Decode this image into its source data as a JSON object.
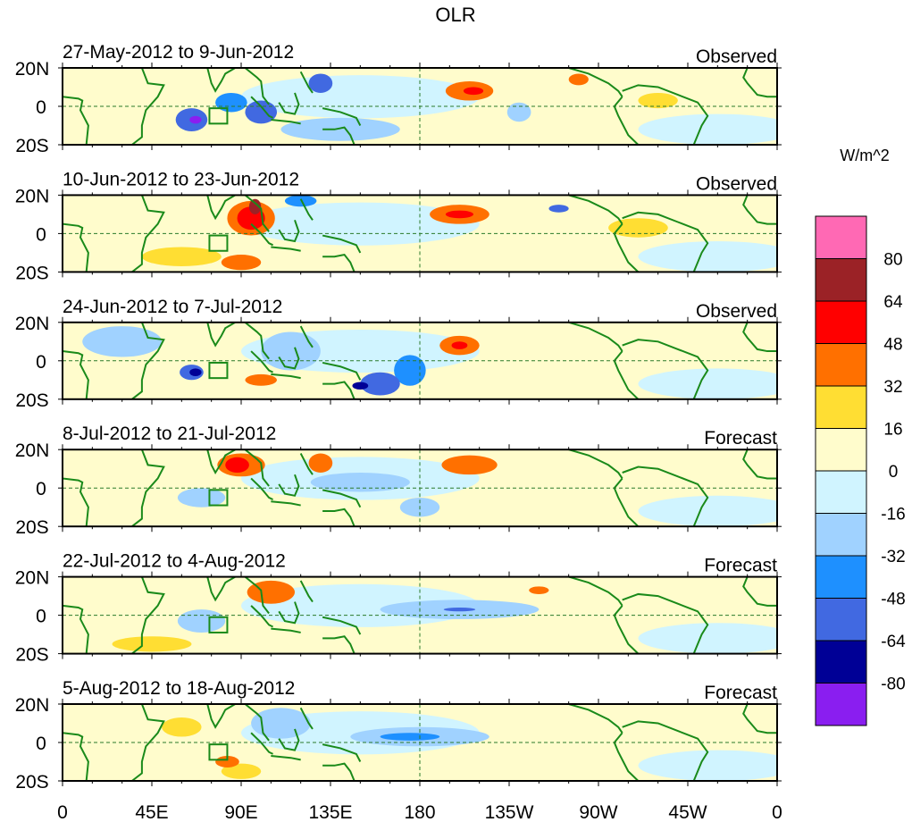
{
  "chart_data": {
    "type": "heatmap",
    "title": "OLR",
    "units_label": "W/m^2",
    "xlim": [
      0,
      360
    ],
    "ylim": [
      -20,
      20
    ],
    "x_ticks": [
      {
        "lon": 0,
        "label": "0"
      },
      {
        "lon": 45,
        "label": "45E"
      },
      {
        "lon": 90,
        "label": "90E"
      },
      {
        "lon": 135,
        "label": "135E"
      },
      {
        "lon": 180,
        "label": "180"
      },
      {
        "lon": 225,
        "label": "135W"
      },
      {
        "lon": 270,
        "label": "90W"
      },
      {
        "lon": 315,
        "label": "45W"
      },
      {
        "lon": 360,
        "label": "0"
      }
    ],
    "y_ticks": [
      {
        "lat": 20,
        "label": "20N"
      },
      {
        "lat": 0,
        "label": "0"
      },
      {
        "lat": -20,
        "label": "20S"
      }
    ],
    "colorbar": {
      "levels": [
        "80",
        "64",
        "48",
        "32",
        "16",
        "0",
        "-16",
        "-32",
        "-48",
        "-64",
        "-80"
      ],
      "colors": [
        "#ff69b4",
        "#9b2226",
        "#ff0000",
        "#ff7000",
        "#ffde33",
        "#fffccc",
        "#d0f4ff",
        "#a0d2ff",
        "#1e90ff",
        "#4169e1",
        "#000096",
        "#8a1ef0"
      ]
    },
    "panels": [
      {
        "period": "27-May-2012 to 9-Jun-2012",
        "kind": "Observed",
        "features": [
          [
            140,
            -12,
            30,
            6,
            -16
          ],
          [
            65,
            -7,
            8,
            6,
            -48
          ],
          [
            67,
            -7,
            3,
            2,
            -80
          ],
          [
            85,
            2,
            8,
            5,
            -32
          ],
          [
            100,
            -3,
            8,
            6,
            -48
          ],
          [
            130,
            12,
            6,
            5,
            -48
          ],
          [
            205,
            8,
            12,
            5,
            32
          ],
          [
            207,
            8,
            5,
            2,
            48
          ],
          [
            230,
            -3,
            6,
            5,
            -16
          ],
          [
            300,
            3,
            10,
            4,
            16
          ],
          [
            260,
            14,
            5,
            3,
            32
          ]
        ]
      },
      {
        "period": "10-Jun-2012 to 23-Jun-2012",
        "kind": "Observed",
        "features": [
          [
            60,
            -12,
            20,
            5,
            16
          ],
          [
            95,
            8,
            12,
            9,
            32
          ],
          [
            95,
            8,
            7,
            6,
            48
          ],
          [
            97,
            14,
            3,
            4,
            64
          ],
          [
            200,
            10,
            15,
            5,
            32
          ],
          [
            200,
            10,
            7,
            2,
            48
          ],
          [
            120,
            17,
            8,
            3,
            -32
          ],
          [
            250,
            13,
            5,
            2,
            -48
          ],
          [
            290,
            3,
            15,
            5,
            16
          ],
          [
            90,
            -15,
            10,
            4,
            32
          ]
        ]
      },
      {
        "period": "24-Jun-2012 to 7-Jul-2012",
        "kind": "Observed",
        "features": [
          [
            115,
            5,
            15,
            10,
            -16
          ],
          [
            30,
            10,
            20,
            8,
            -16
          ],
          [
            65,
            -6,
            6,
            4,
            -48
          ],
          [
            67,
            -6,
            3,
            2,
            -64
          ],
          [
            175,
            -5,
            8,
            8,
            -32
          ],
          [
            160,
            -12,
            10,
            6,
            -48
          ],
          [
            150,
            -13,
            4,
            2,
            -64
          ],
          [
            200,
            8,
            10,
            5,
            32
          ],
          [
            200,
            8,
            4,
            2,
            48
          ],
          [
            100,
            -10,
            8,
            3,
            32
          ]
        ]
      },
      {
        "period": "8-Jul-2012 to 21-Jul-2012",
        "kind": "Forecast",
        "features": [
          [
            150,
            3,
            25,
            5,
            -16
          ],
          [
            70,
            -5,
            12,
            5,
            -16
          ],
          [
            180,
            -10,
            10,
            5,
            -16
          ],
          [
            90,
            12,
            12,
            6,
            32
          ],
          [
            88,
            12,
            6,
            4,
            48
          ],
          [
            130,
            13,
            6,
            5,
            32
          ],
          [
            205,
            12,
            14,
            5,
            32
          ]
        ]
      },
      {
        "period": "22-Jul-2012 to 4-Aug-2012",
        "kind": "Forecast",
        "features": [
          [
            45,
            -15,
            20,
            4,
            16
          ],
          [
            200,
            3,
            40,
            5,
            -16
          ],
          [
            200,
            3,
            8,
            1,
            -48
          ],
          [
            70,
            -3,
            12,
            6,
            -16
          ],
          [
            105,
            12,
            12,
            6,
            32
          ],
          [
            240,
            13,
            5,
            2,
            32
          ]
        ]
      },
      {
        "period": "5-Aug-2012 to 18-Aug-2012",
        "kind": "Forecast",
        "features": [
          [
            110,
            10,
            15,
            8,
            -16
          ],
          [
            90,
            -15,
            10,
            4,
            16
          ],
          [
            60,
            8,
            10,
            5,
            16
          ],
          [
            180,
            3,
            35,
            5,
            -16
          ],
          [
            175,
            3,
            15,
            2,
            -32
          ],
          [
            83,
            -10,
            6,
            3,
            32
          ]
        ]
      }
    ]
  }
}
